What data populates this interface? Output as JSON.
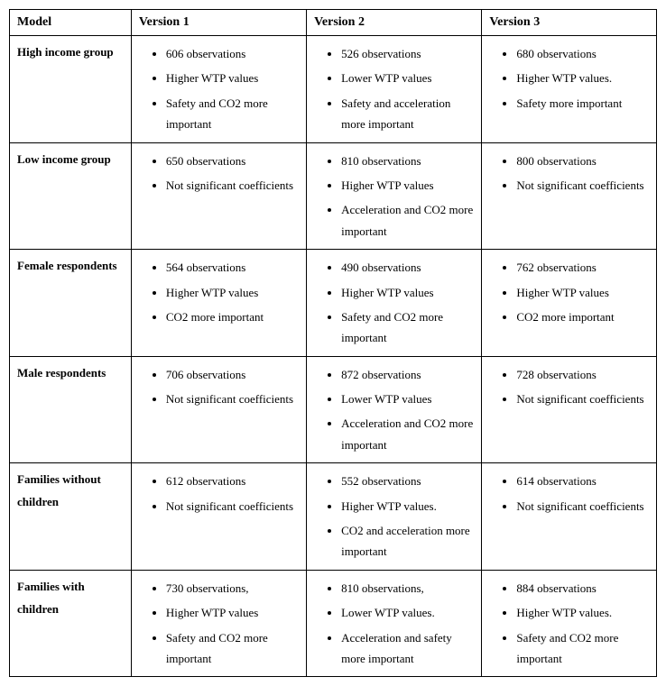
{
  "columns": [
    "Model",
    "Version 1",
    "Version 2",
    "Version 3"
  ],
  "rows": [
    {
      "model": "High income group",
      "v1": [
        "606 observations",
        "Higher WTP values",
        "Safety and CO2 more important"
      ],
      "v2": [
        "526 observations",
        "Lower WTP values",
        "Safety and acceleration more important"
      ],
      "v3": [
        "680 observations",
        "Higher WTP values.",
        "Safety more important"
      ]
    },
    {
      "model": "Low income group",
      "v1": [
        "650 observations",
        "Not significant coefficients"
      ],
      "v2": [
        "810 observations",
        "Higher WTP values",
        "Acceleration and CO2 more important"
      ],
      "v3": [
        "800 observations",
        "Not significant coefficients"
      ]
    },
    {
      "model": "Female respondents",
      "v1": [
        "564 observations",
        "Higher WTP values",
        "CO2 more important"
      ],
      "v2": [
        "490 observations",
        "Higher WTP values",
        "Safety and CO2 more important"
      ],
      "v3": [
        "762 observations",
        "Higher WTP values",
        "CO2 more important"
      ]
    },
    {
      "model": "Male respondents",
      "v1": [
        "706 observations",
        "Not significant coefficients"
      ],
      "v2": [
        "872 observations",
        "Lower WTP values",
        "Acceleration and CO2 more important"
      ],
      "v3": [
        "728 observations",
        "Not significant coefficients"
      ]
    },
    {
      "model": "Families without children",
      "v1": [
        "612 observations",
        "Not significant coefficients"
      ],
      "v2": [
        "552 observations",
        "Higher WTP values.",
        "CO2 and acceleration more important"
      ],
      "v3": [
        "614 observations",
        "Not significant coefficients"
      ]
    },
    {
      "model": "Families with children",
      "v1": [
        "730 observations,",
        "Higher WTP values",
        "Safety and CO2 more important"
      ],
      "v2": [
        "810 observations,",
        "Lower WTP values.",
        "Acceleration and safety more important"
      ],
      "v3": [
        "884 observations",
        "Higher WTP values.",
        "Safety and CO2 more important"
      ]
    }
  ]
}
